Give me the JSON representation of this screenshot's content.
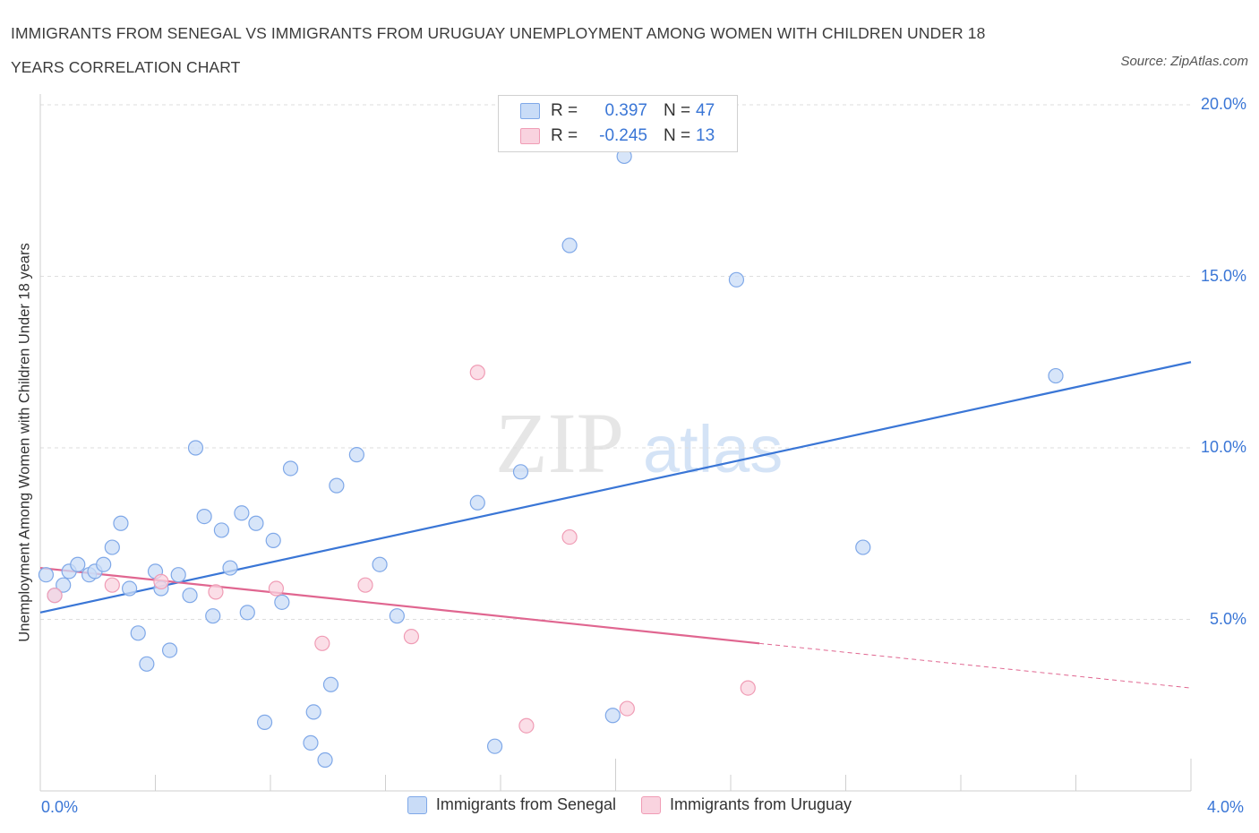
{
  "title_line1": "IMMIGRANTS FROM SENEGAL VS IMMIGRANTS FROM URUGUAY UNEMPLOYMENT AMONG WOMEN WITH CHILDREN UNDER 18",
  "title_line2": "YEARS CORRELATION CHART",
  "source": "Source: ZipAtlas.com",
  "watermark": {
    "zip": "ZIP",
    "atlas": "atlas"
  },
  "legend": {
    "rows": [
      {
        "r_label": "R =",
        "r_value": "0.397",
        "n_label": "N =",
        "n_value": "47"
      },
      {
        "r_label": "R =",
        "r_value": "-0.245",
        "n_label": "N =",
        "n_value": "13"
      }
    ]
  },
  "bottom_legend": [
    "Immigrants from Senegal",
    "Immigrants from Uruguay"
  ],
  "chart_data": {
    "type": "scatter",
    "ylabel": "Unemployment Among Women with Children Under 18 years",
    "xlabel": "",
    "xlim": [
      0,
      4.0
    ],
    "ylim": [
      0,
      20.0
    ],
    "x_tick_labels": [
      "0.0%",
      "4.0%"
    ],
    "y_ticks": [
      5,
      10,
      15,
      20
    ],
    "y_tick_labels": [
      "5.0%",
      "10.0%",
      "15.0%",
      "20.0%"
    ],
    "grid": true,
    "legend_position": "top-center",
    "series": [
      {
        "name": "Immigrants from Senegal",
        "color": "#7fa8e8",
        "fill": "#c9dcf7",
        "line_color": "#3a76d6",
        "trend": {
          "x": [
            0.0,
            4.0
          ],
          "y": [
            5.2,
            12.5
          ]
        },
        "points": [
          [
            0.02,
            6.3
          ],
          [
            0.05,
            5.7
          ],
          [
            0.08,
            6.0
          ],
          [
            0.1,
            6.4
          ],
          [
            0.13,
            6.6
          ],
          [
            0.17,
            6.3
          ],
          [
            0.19,
            6.4
          ],
          [
            0.22,
            6.6
          ],
          [
            0.25,
            7.1
          ],
          [
            0.28,
            7.8
          ],
          [
            0.31,
            5.9
          ],
          [
            0.34,
            4.6
          ],
          [
            0.37,
            3.7
          ],
          [
            0.4,
            6.4
          ],
          [
            0.42,
            5.9
          ],
          [
            0.45,
            4.1
          ],
          [
            0.48,
            6.3
          ],
          [
            0.52,
            5.7
          ],
          [
            0.54,
            10.0
          ],
          [
            0.57,
            8.0
          ],
          [
            0.6,
            5.1
          ],
          [
            0.63,
            7.6
          ],
          [
            0.66,
            6.5
          ],
          [
            0.7,
            8.1
          ],
          [
            0.72,
            5.2
          ],
          [
            0.75,
            7.8
          ],
          [
            0.78,
            2.0
          ],
          [
            0.81,
            7.3
          ],
          [
            0.84,
            5.5
          ],
          [
            0.87,
            9.4
          ],
          [
            0.94,
            1.4
          ],
          [
            0.95,
            2.3
          ],
          [
            0.99,
            0.9
          ],
          [
            1.01,
            3.1
          ],
          [
            1.03,
            8.9
          ],
          [
            1.1,
            9.8
          ],
          [
            1.18,
            6.6
          ],
          [
            1.24,
            5.1
          ],
          [
            1.52,
            8.4
          ],
          [
            1.58,
            1.3
          ],
          [
            1.67,
            9.3
          ],
          [
            1.84,
            15.9
          ],
          [
            1.99,
            2.2
          ],
          [
            2.03,
            18.5
          ],
          [
            2.42,
            14.9
          ],
          [
            2.86,
            7.1
          ],
          [
            3.53,
            12.1
          ]
        ]
      },
      {
        "name": "Immigrants from Uruguay",
        "color": "#f09cb5",
        "fill": "#f9d3df",
        "line_color": "#e06690",
        "trend": {
          "x": [
            0.0,
            2.5
          ],
          "y": [
            6.5,
            4.3
          ]
        },
        "trend_dashed": {
          "x": [
            2.5,
            4.0
          ],
          "y": [
            4.3,
            3.0
          ]
        },
        "points": [
          [
            0.05,
            5.7
          ],
          [
            0.25,
            6.0
          ],
          [
            0.42,
            6.1
          ],
          [
            0.61,
            5.8
          ],
          [
            0.82,
            5.9
          ],
          [
            0.98,
            4.3
          ],
          [
            1.13,
            6.0
          ],
          [
            1.29,
            4.5
          ],
          [
            1.52,
            12.2
          ],
          [
            1.69,
            1.9
          ],
          [
            1.84,
            7.4
          ],
          [
            2.04,
            2.4
          ],
          [
            2.46,
            3.0
          ]
        ]
      }
    ]
  }
}
